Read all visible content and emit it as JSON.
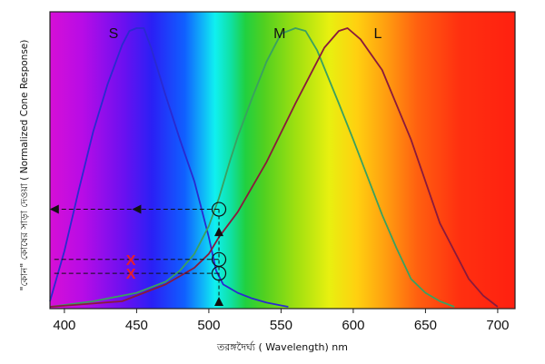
{
  "chart_data": {
    "type": "line",
    "xlabel": "তরঙ্গদৈর্ঘ্য  ( Wavelength) nm",
    "ylabel": "\"কোন\"  কোষের  সাড়া  দেওয়া  ( Normalized Cone Response)",
    "xlim": [
      390,
      712
    ],
    "ylim": [
      0,
      1
    ],
    "x_ticks": [
      400,
      450,
      500,
      550,
      600,
      650,
      700
    ],
    "x_tick_labels": [
      "400",
      "450",
      "500",
      "550",
      "600",
      "650",
      "700"
    ],
    "background": "visible spectrum gradient",
    "series": [
      {
        "name": "S",
        "color": "#2a2ad0",
        "x": [
          390,
          400,
          410,
          420,
          430,
          440,
          445,
          450,
          455,
          460,
          470,
          480,
          490,
          500,
          505,
          510,
          520,
          530,
          540,
          550,
          555
        ],
        "y": [
          0.02,
          0.2,
          0.42,
          0.63,
          0.8,
          0.94,
          0.99,
          1.0,
          1.0,
          0.93,
          0.76,
          0.6,
          0.45,
          0.25,
          0.13,
          0.08,
          0.05,
          0.03,
          0.015,
          0.005,
          0.0
        ]
      },
      {
        "name": "M",
        "color": "#3aa060",
        "x": [
          390,
          420,
          450,
          470,
          480,
          490,
          500,
          507,
          515,
          520,
          530,
          540,
          550,
          560,
          567,
          575,
          590,
          600,
          620,
          630,
          640,
          650,
          660,
          670
        ],
        "y": [
          0.0,
          0.02,
          0.05,
          0.09,
          0.13,
          0.19,
          0.29,
          0.39,
          0.53,
          0.61,
          0.75,
          0.88,
          0.98,
          1.0,
          0.99,
          0.92,
          0.73,
          0.6,
          0.33,
          0.21,
          0.1,
          0.05,
          0.02,
          0.0
        ]
      },
      {
        "name": "L",
        "color": "#8a1a3c",
        "x": [
          390,
          440,
          470,
          490,
          500,
          507,
          520,
          540,
          560,
          570,
          580,
          590,
          596,
          605,
          620,
          640,
          660,
          680,
          690,
          700
        ],
        "y": [
          0.0,
          0.02,
          0.08,
          0.14,
          0.19,
          0.25,
          0.34,
          0.52,
          0.73,
          0.83,
          0.93,
          0.99,
          1.0,
          0.96,
          0.85,
          0.6,
          0.3,
          0.1,
          0.04,
          0.0
        ]
      }
    ],
    "curve_labels": [
      {
        "text": "S",
        "x": 434,
        "y": 0.98
      },
      {
        "text": "M",
        "x": 549,
        "y": 0.98
      },
      {
        "text": "L",
        "x": 617,
        "y": 0.98
      }
    ],
    "annotations": {
      "guide_wavelength": 507,
      "dashed_levels": [
        0.35,
        0.17,
        0.12
      ],
      "circle_levels": [
        0.35,
        0.17,
        0.12
      ],
      "up_arrow_levels": [
        0.27,
        0.0
      ],
      "left_arrow_x": [
        450,
        393
      ],
      "x_marks": [
        {
          "text": "X",
          "x": 446,
          "y": 0.17
        },
        {
          "text": "X",
          "x": 446,
          "y": 0.12
        }
      ]
    }
  }
}
